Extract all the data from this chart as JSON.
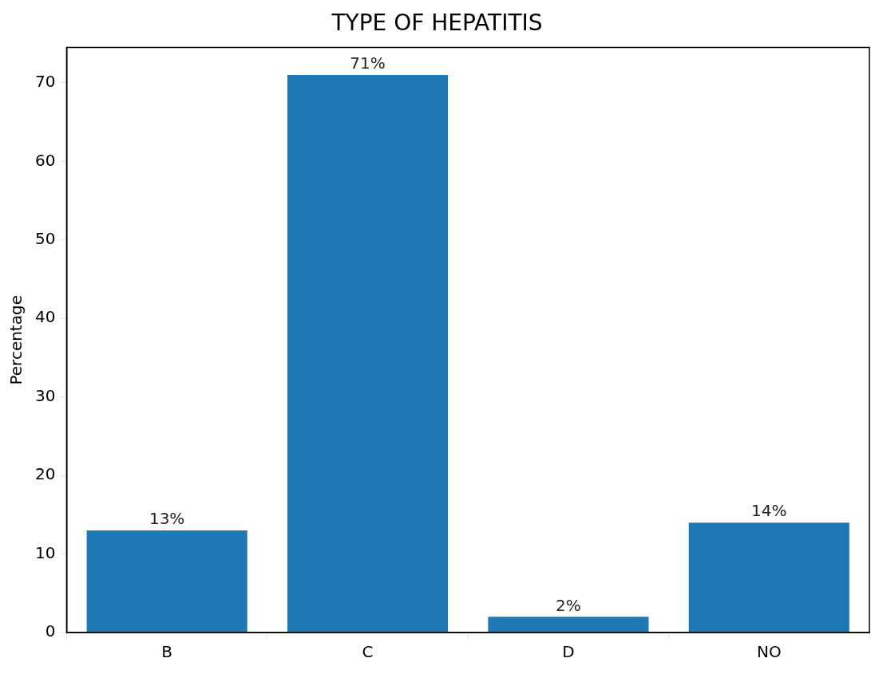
{
  "chart_data": {
    "type": "bar",
    "title": "TYPE OF HEPATITIS",
    "ylabel": "Percentage",
    "categories": [
      "B",
      "C",
      "D",
      "NO"
    ],
    "values": [
      13,
      71,
      2,
      14
    ],
    "value_labels": [
      "13%",
      "71%",
      "2%",
      "14%"
    ],
    "color": "#1f77b4",
    "ylim": [
      0,
      74.5
    ],
    "yticks": [
      0,
      10,
      20,
      30,
      40,
      50,
      60,
      70
    ],
    "grid": false
  }
}
